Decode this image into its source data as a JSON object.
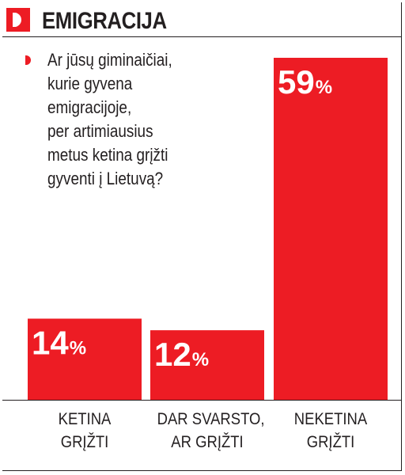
{
  "header": {
    "title": "EMIGRACIJA",
    "logo_letter": "D",
    "accent_color": "#ed1c24"
  },
  "question_lines": [
    "Ar jūsų giminaičiai,",
    "kurie gyvena",
    "emigracijoje,",
    "per artimiausius",
    "metus ketina grįžti",
    "gyventi į Lietuvą?"
  ],
  "chart_data": {
    "type": "bar",
    "categories": [
      [
        "KETINA",
        "GRĮŽTI"
      ],
      [
        "DAR SVARSTO,",
        "AR GRĮŽTI"
      ],
      [
        "NEKETINA",
        "GRĮŽTI"
      ]
    ],
    "values": [
      14,
      12,
      59
    ],
    "value_labels": [
      "14",
      "12",
      "59"
    ],
    "unit": "%",
    "bar_color": "#ed1c24",
    "label_color": "#ffffff",
    "ylim": [
      0,
      59
    ],
    "grid": false
  }
}
